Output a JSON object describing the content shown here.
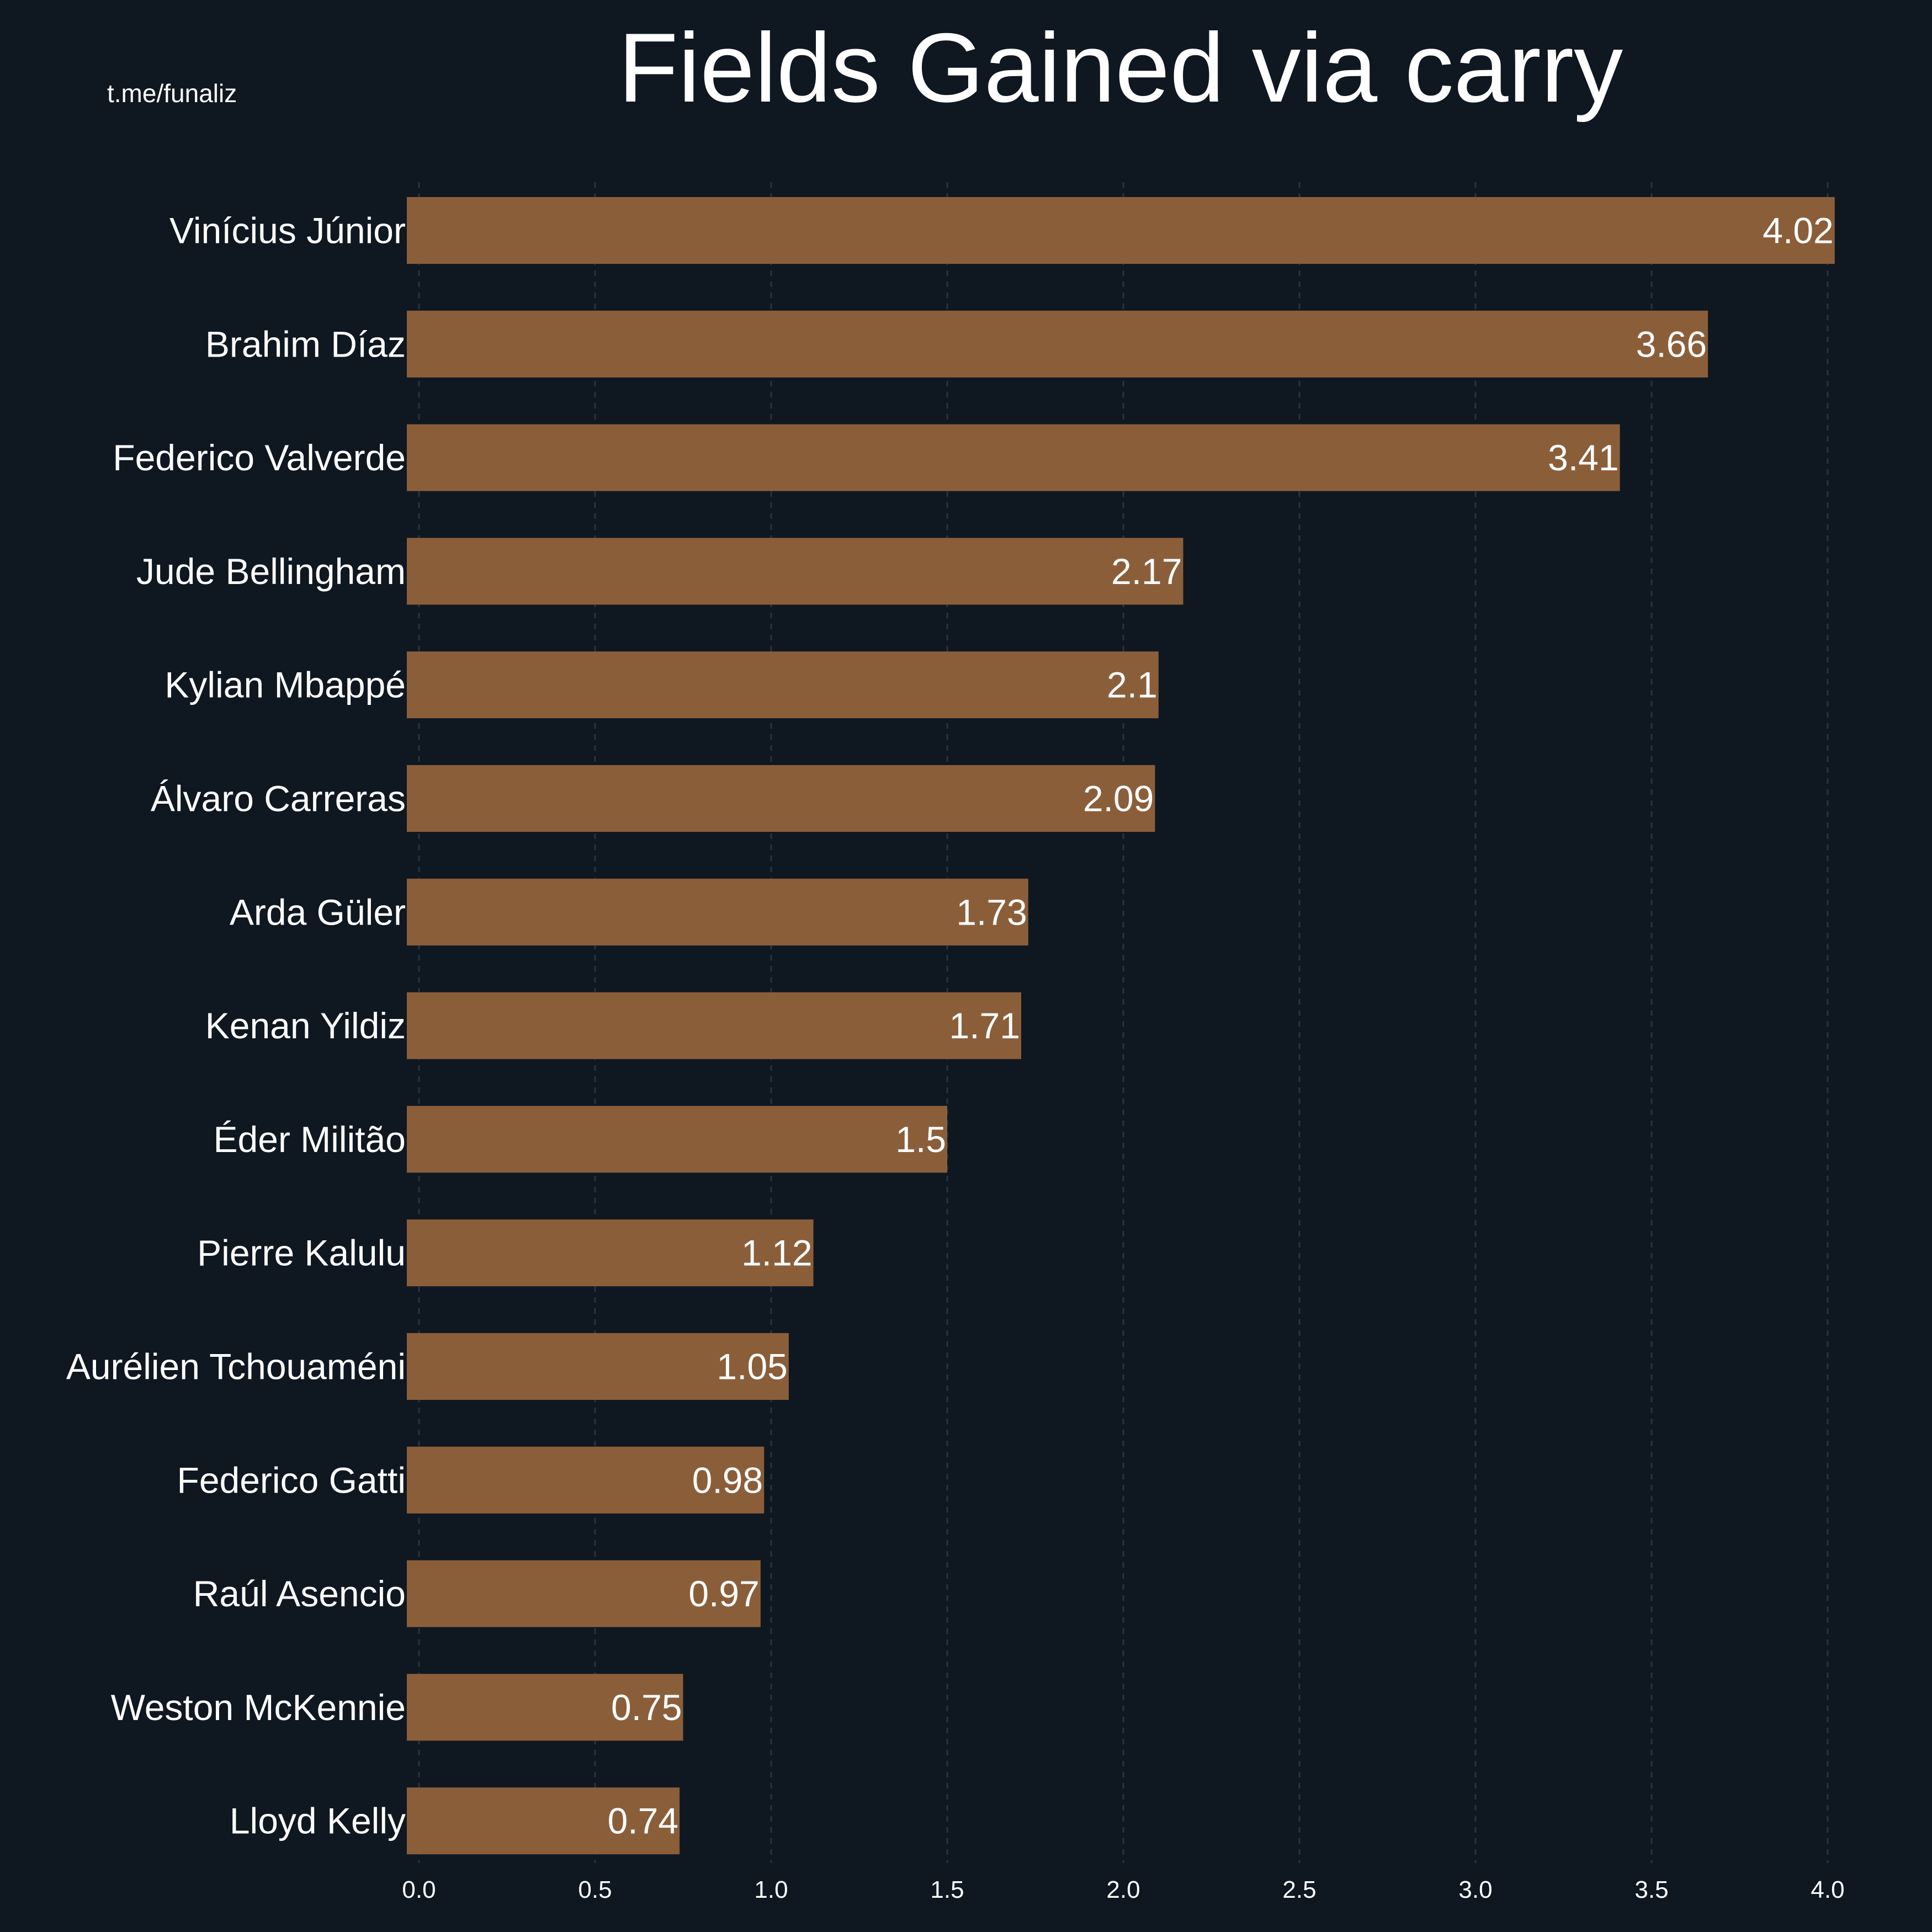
{
  "watermark": "t.me/funaliz",
  "chart_data": {
    "type": "bar",
    "orientation": "horizontal",
    "title": "Fields Gained via carry",
    "xlabel": "",
    "ylabel": "",
    "xlim": [
      0,
      4.0
    ],
    "xticks": [
      "0.0",
      "0.5",
      "1.0",
      "1.5",
      "2.0",
      "2.5",
      "3.0",
      "3.5",
      "4.0"
    ],
    "grid": "vertical dashed, faint",
    "bar_color": "#8B5E3A",
    "background": "#0f1821",
    "categories": [
      "Vinícius Júnior",
      "Brahim Díaz",
      "Federico Valverde",
      "Jude Bellingham",
      "Kylian Mbappé",
      "Álvaro Carreras",
      "Arda Güler",
      "Kenan Yildiz",
      "Éder Militão",
      "Pierre Kalulu",
      "Aurélien Tchouaméni",
      "Federico Gatti",
      "Raúl Asencio",
      "Weston McKennie",
      "Lloyd Kelly"
    ],
    "values": [
      4.02,
      3.66,
      3.41,
      2.17,
      2.1,
      2.09,
      1.73,
      1.71,
      1.5,
      1.12,
      1.05,
      0.98,
      0.97,
      0.75,
      0.74
    ],
    "value_labels": [
      "4.02",
      "3.66",
      "3.41",
      "2.17",
      "2.1",
      "2.09",
      "1.73",
      "1.71",
      "1.5",
      "1.12",
      "1.05",
      "0.98",
      "0.97",
      "0.75",
      "0.74"
    ]
  }
}
